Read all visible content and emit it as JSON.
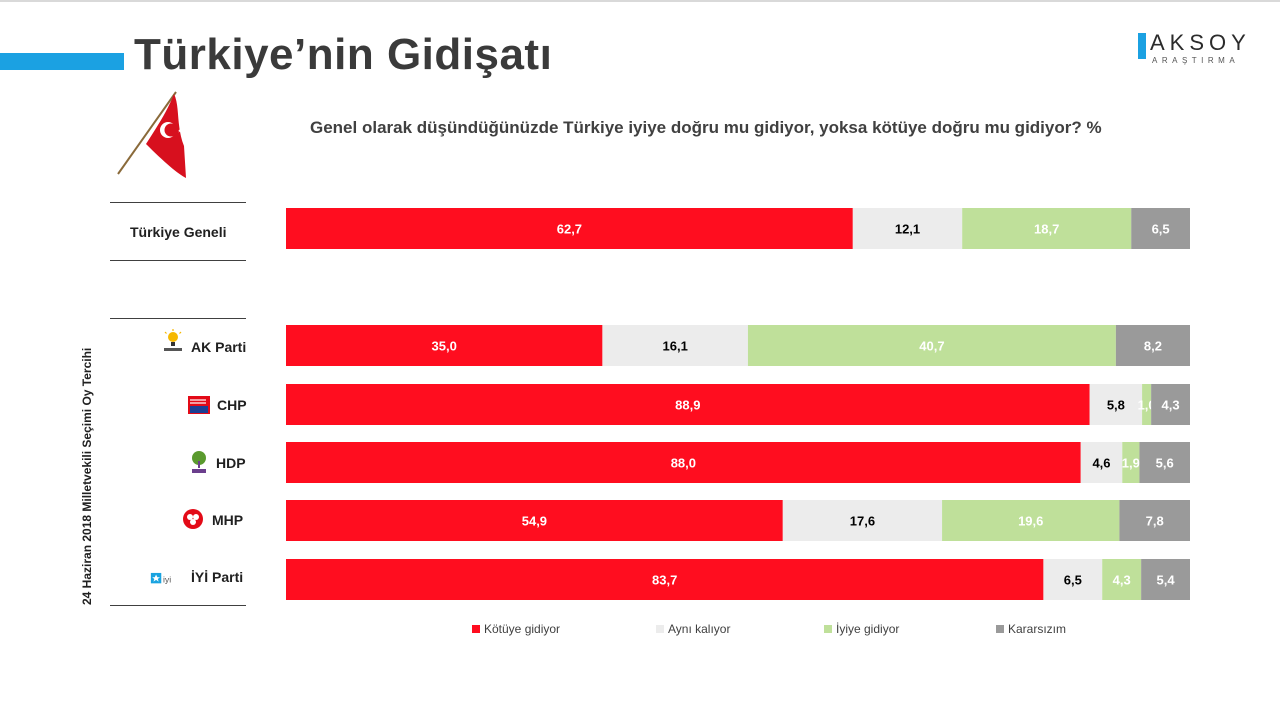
{
  "header": {
    "title": "Türkiye’nin Gidişatı",
    "logo_main": "AKSOY",
    "logo_sub": "ARAŞTIRMA"
  },
  "side_label": "24 Haziran 2018 Milletvekili Seçimi Oy Tercihi",
  "colors": {
    "accent": "#1ba1e2",
    "kotuye": "#ff0d1f",
    "ayni": "#ececec",
    "iyiye": "#bfe09a",
    "kararsiz": "#9a9a9a"
  },
  "chart_data": {
    "type": "bar",
    "orientation": "horizontal",
    "stacked": true,
    "title": "Genel olarak düşündüğünüzde Türkiye iyiye doğru mu gidiyor, yoksa kötüye doğru mu gidiyor? %",
    "categories": [
      "Türkiye Geneli",
      "AK Parti",
      "CHP",
      "HDP",
      "MHP",
      "İYİ Parti"
    ],
    "series": [
      {
        "name": "Kötüye gidiyor",
        "values": [
          62.7,
          35.0,
          88.9,
          88.0,
          54.9,
          83.7
        ],
        "labels": [
          "62,7",
          "35,0",
          "88,9",
          "88,0",
          "54,9",
          "83,7"
        ]
      },
      {
        "name": "Aynı kalıyor",
        "values": [
          12.1,
          16.1,
          5.8,
          4.6,
          17.6,
          6.5
        ],
        "labels": [
          "12,1",
          "16,1",
          "5,8",
          "4,6",
          "17,6",
          "6,5"
        ]
      },
      {
        "name": "İyiye gidiyor",
        "values": [
          18.7,
          40.7,
          1.0,
          1.9,
          19.6,
          4.3
        ],
        "labels": [
          "18,7",
          "40,7",
          "1,0",
          "1,9",
          "19,6",
          "4,3"
        ]
      },
      {
        "name": "Kararsızım",
        "values": [
          6.5,
          8.2,
          4.3,
          5.6,
          7.8,
          5.4
        ],
        "labels": [
          "6,5",
          "8,2",
          "4,3",
          "5,6",
          "7,8",
          "5,4"
        ]
      }
    ],
    "legend_position": "bottom",
    "grid": false
  }
}
